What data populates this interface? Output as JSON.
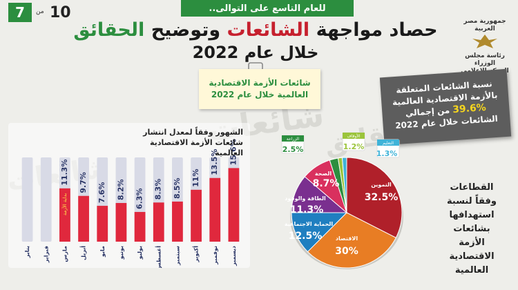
{
  "banner": "للعام التاسع على التوالى..",
  "page": {
    "current": "7",
    "of_word": "من",
    "total": "10"
  },
  "title": {
    "part1": "حصاد مواجهة ",
    "part2": "الشائعات",
    "part3": " وتوضيح ",
    "part4": "الحقائق",
    "line2": "خلال عام 2022"
  },
  "logo": {
    "line1": "جمهورية مصر العربية",
    "line2": "رئاسة مجلس الوزراء",
    "line3": "المركز الإعلامي"
  },
  "note": {
    "line1": "شائعات الأزمة الاقتصادية",
    "line2": "العالمية خلال عام 2022"
  },
  "stat": {
    "line1": "نسبة الشائعات المتعلقة",
    "line2": "بالأزمة الاقتصادية العالمية",
    "pct": "39.6%",
    "line3a": " من إجمالي",
    "line4": "الشائعات خلال عام 2022"
  },
  "bar_heading": {
    "line1": "الشهور وفقاً لمعدل انتشار",
    "line2": "شائعات الأزمة الاقتصادية العالمية"
  },
  "bar_start_label": "بداية الأزمة",
  "sector_heading": [
    "القطاعات",
    "وفقاً لنسبة",
    "استهدافها",
    "بشائعات",
    "الأزمة",
    "الاقتصادية",
    "العالمية"
  ],
  "colors": {
    "green": "#2c8e3f",
    "red_bar": "#e0283d",
    "bar_back": "#d8dae6"
  },
  "chart_data": [
    {
      "type": "bar",
      "categories": [
        "يناير",
        "فبراير",
        "مارس",
        "أبريل",
        "مايو",
        "يونيو",
        "يوليو",
        "أغسطس",
        "سبتمبر",
        "أكتوبر",
        "نوفمبر",
        "ديسمبر"
      ],
      "values": [
        null,
        null,
        11.3,
        9.7,
        7.6,
        8.2,
        6.3,
        8.3,
        8.5,
        11,
        13.5,
        15.6
      ],
      "labels": [
        "",
        "",
        "11.3%",
        "9.7%",
        "7.6%",
        "8.2%",
        "6.3%",
        "8.3%",
        "8.5%",
        "11%",
        "13.5%",
        "15.6%"
      ],
      "ylim": [
        0,
        20
      ]
    },
    {
      "type": "pie",
      "slices": [
        {
          "label": "التموين",
          "value": 32.5,
          "text": "32.5%",
          "color": "#b0202a"
        },
        {
          "label": "الاقتصاد",
          "value": 30,
          "text": "30%",
          "color": "#e87d24"
        },
        {
          "label": "الحماية الاجتماعية",
          "value": 12.5,
          "text": "12.5%",
          "color": "#1f7fc0"
        },
        {
          "label": "الطاقة والوقود",
          "value": 11.3,
          "text": "11.3%",
          "color": "#7a2f8f"
        },
        {
          "label": "الصحة",
          "value": 8.7,
          "text": "8.7%",
          "color": "#d9305e"
        },
        {
          "label": "الزراعة",
          "value": 2.5,
          "text": "2.5%",
          "color": "#2c8e3f"
        },
        {
          "label": "الأوقاف",
          "value": 1.2,
          "text": "1.2%",
          "color": "#9bc43b"
        },
        {
          "label": "التعليم",
          "value": 1.3,
          "text": "1.3%",
          "color": "#3fb3d8"
        }
      ]
    }
  ]
}
